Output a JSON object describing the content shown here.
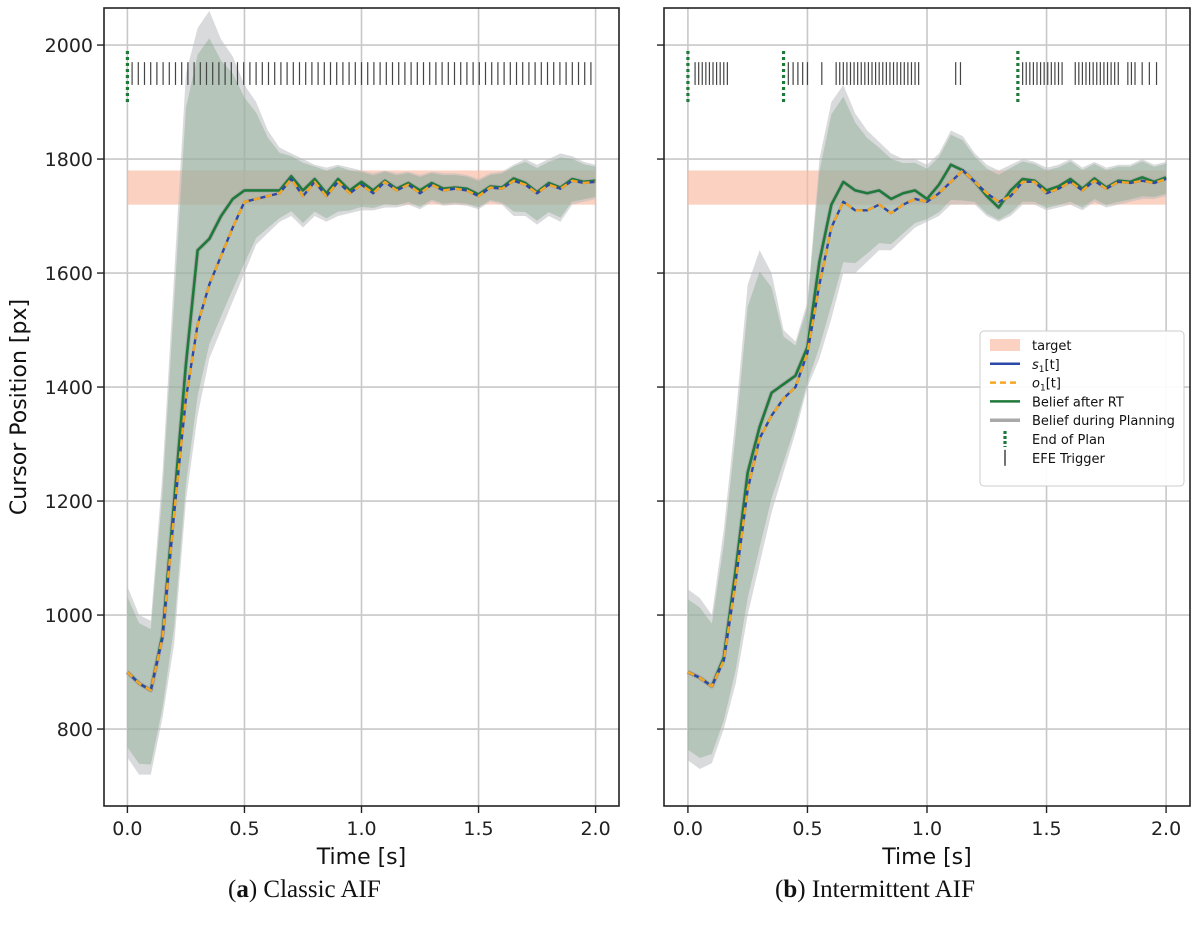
{
  "captions": {
    "a": {
      "letter": "a",
      "text": " Classic AIF"
    },
    "b": {
      "letter": "b",
      "text": " Intermittent AIF"
    }
  },
  "colors": {
    "target": "#f9b8a0",
    "s1": "#2b4aa8",
    "o1": "#f5a623",
    "belief_after_rt": "#1f7a3a",
    "belief_planning": "#a9a9a9",
    "end_of_plan": "#1f7a3a",
    "efe_trigger": "#444444",
    "band_gray": "#b9bcbf",
    "band_green": "#8aaa8f"
  },
  "legend": {
    "target": "target",
    "s1": "s",
    "s1_sub": "1",
    "s1_tail": "[t]",
    "o1": "o",
    "o1_sub": "1",
    "o1_tail": "[t]",
    "belief_after_rt": "Belief after RT",
    "belief_planning": "Belief during Planning",
    "end_of_plan": "End of Plan",
    "efe_trigger": "EFE Trigger"
  },
  "chart_data": [
    {
      "type": "line",
      "panel": "a",
      "title": "Classic AIF",
      "xlabel": "Time [s]",
      "ylabel": "Cursor Position [px]",
      "xlim": [
        -0.1,
        2.1
      ],
      "ylim": [
        665,
        2065
      ],
      "xticks": [
        0.0,
        0.5,
        1.0,
        1.5,
        2.0
      ],
      "xtick_labels": [
        "0.0",
        "0.5",
        "1.0",
        "1.5",
        "2.0"
      ],
      "yticks": [
        800,
        1000,
        1200,
        1400,
        1600,
        1800,
        2000
      ],
      "ytick_labels": [
        "800",
        "1000",
        "1200",
        "1400",
        "1600",
        "1800",
        "2000"
      ],
      "grid": true,
      "target_band": [
        1720,
        1780
      ],
      "x": [
        0.0,
        0.05,
        0.1,
        0.15,
        0.2,
        0.25,
        0.3,
        0.35,
        0.4,
        0.45,
        0.5,
        0.55,
        0.6,
        0.65,
        0.7,
        0.75,
        0.8,
        0.85,
        0.9,
        0.95,
        1.0,
        1.05,
        1.1,
        1.15,
        1.2,
        1.25,
        1.3,
        1.35,
        1.4,
        1.45,
        1.5,
        1.55,
        1.6,
        1.65,
        1.7,
        1.75,
        1.8,
        1.85,
        1.9,
        1.95,
        2.0
      ],
      "series": [
        {
          "name": "s1[t]",
          "values": [
            900,
            880,
            868,
            960,
            1180,
            1380,
            1510,
            1580,
            1630,
            1680,
            1725,
            1730,
            1735,
            1740,
            1765,
            1735,
            1760,
            1735,
            1760,
            1740,
            1755,
            1740,
            1760,
            1745,
            1755,
            1740,
            1755,
            1745,
            1748,
            1745,
            1735,
            1750,
            1748,
            1762,
            1755,
            1740,
            1755,
            1748,
            1762,
            1758,
            1760
          ]
        },
        {
          "name": "o1[t]",
          "values": [
            900,
            880,
            868,
            960,
            1180,
            1380,
            1510,
            1580,
            1630,
            1680,
            1725,
            1730,
            1735,
            1740,
            1765,
            1735,
            1760,
            1735,
            1760,
            1740,
            1755,
            1740,
            1760,
            1745,
            1755,
            1740,
            1755,
            1745,
            1748,
            1745,
            1735,
            1750,
            1748,
            1762,
            1755,
            1740,
            1755,
            1748,
            1762,
            1758,
            1760
          ]
        },
        {
          "name": "Belief after RT",
          "values": [
            900,
            880,
            868,
            965,
            1200,
            1440,
            1640,
            1660,
            1700,
            1730,
            1745,
            1745,
            1745,
            1745,
            1770,
            1745,
            1765,
            1740,
            1765,
            1745,
            1760,
            1745,
            1762,
            1748,
            1758,
            1745,
            1758,
            1748,
            1750,
            1748,
            1738,
            1752,
            1750,
            1766,
            1758,
            1742,
            1758,
            1750,
            1765,
            1760,
            1762
          ]
        },
        {
          "name": "Belief during Planning",
          "values": [
            900,
            880,
            868,
            965,
            1200,
            1440,
            1640,
            1660,
            1700,
            1730,
            1745,
            1745,
            1745,
            1745,
            1770,
            1745,
            1765,
            1740,
            1765,
            1745,
            1760,
            1745,
            1762,
            1748,
            1758,
            1745,
            1758,
            1748,
            1750,
            1748,
            1738,
            1752,
            1750,
            1766,
            1758,
            1742,
            1758,
            1750,
            1765,
            1760,
            1762
          ]
        }
      ],
      "band_upper": [
        1050,
        1000,
        990,
        1250,
        1600,
        1950,
        2030,
        2060,
        2010,
        1980,
        1930,
        1900,
        1850,
        1820,
        1810,
        1800,
        1790,
        1785,
        1790,
        1785,
        1780,
        1775,
        1780,
        1775,
        1778,
        1772,
        1778,
        1775,
        1775,
        1772,
        1765,
        1775,
        1778,
        1790,
        1800,
        1790,
        1800,
        1810,
        1805,
        1795,
        1790
      ],
      "band_lower": [
        750,
        720,
        720,
        820,
        950,
        1200,
        1350,
        1450,
        1500,
        1550,
        1600,
        1650,
        1670,
        1690,
        1700,
        1680,
        1700,
        1690,
        1700,
        1705,
        1710,
        1710,
        1715,
        1715,
        1720,
        1712,
        1725,
        1718,
        1720,
        1718,
        1712,
        1725,
        1720,
        1700,
        1700,
        1685,
        1700,
        1690,
        1720,
        1725,
        1730
      ],
      "end_of_plan": [
        0.0
      ],
      "efe_trigger_range": [
        0.02,
        1.98
      ],
      "efe_trigger_count": 75,
      "marker_y": [
        1930,
        1970
      ]
    },
    {
      "type": "line",
      "panel": "b",
      "title": "Intermittent AIF",
      "xlabel": "Time [s]",
      "ylabel": "",
      "xlim": [
        -0.1,
        2.1
      ],
      "ylim": [
        665,
        2065
      ],
      "xticks": [
        0.0,
        0.5,
        1.0,
        1.5,
        2.0
      ],
      "xtick_labels": [
        "0.0",
        "0.5",
        "1.0",
        "1.5",
        "2.0"
      ],
      "yticks": [
        800,
        1000,
        1200,
        1400,
        1600,
        1800,
        2000
      ],
      "ytick_labels": [
        "",
        "",
        "",
        "",
        "",
        "",
        ""
      ],
      "grid": true,
      "target_band": [
        1720,
        1780
      ],
      "x": [
        0.0,
        0.05,
        0.1,
        0.15,
        0.2,
        0.25,
        0.3,
        0.35,
        0.4,
        0.45,
        0.5,
        0.55,
        0.6,
        0.65,
        0.7,
        0.75,
        0.8,
        0.85,
        0.9,
        0.95,
        1.0,
        1.05,
        1.1,
        1.15,
        1.2,
        1.25,
        1.3,
        1.35,
        1.4,
        1.45,
        1.5,
        1.55,
        1.6,
        1.65,
        1.7,
        1.75,
        1.8,
        1.85,
        1.9,
        1.95,
        2.0
      ],
      "series": [
        {
          "name": "s1[t]",
          "values": [
            900,
            890,
            875,
            920,
            1060,
            1220,
            1310,
            1350,
            1380,
            1400,
            1460,
            1580,
            1680,
            1725,
            1710,
            1710,
            1720,
            1705,
            1720,
            1730,
            1725,
            1740,
            1760,
            1780,
            1760,
            1740,
            1725,
            1735,
            1760,
            1760,
            1740,
            1748,
            1760,
            1745,
            1762,
            1748,
            1760,
            1758,
            1762,
            1758,
            1765
          ]
        },
        {
          "name": "o1[t]",
          "values": [
            900,
            890,
            875,
            920,
            1060,
            1220,
            1310,
            1350,
            1380,
            1400,
            1460,
            1580,
            1680,
            1725,
            1710,
            1710,
            1720,
            1705,
            1720,
            1730,
            1725,
            1740,
            1760,
            1780,
            1760,
            1740,
            1725,
            1735,
            1760,
            1760,
            1740,
            1748,
            1760,
            1745,
            1762,
            1748,
            1760,
            1758,
            1762,
            1758,
            1765
          ]
        },
        {
          "name": "Belief after RT",
          "values": [
            900,
            890,
            875,
            925,
            1080,
            1250,
            1330,
            1390,
            1405,
            1420,
            1470,
            1620,
            1720,
            1760,
            1745,
            1740,
            1745,
            1730,
            1740,
            1745,
            1730,
            1755,
            1790,
            1780,
            1760,
            1735,
            1715,
            1745,
            1765,
            1762,
            1745,
            1752,
            1765,
            1748,
            1766,
            1750,
            1762,
            1760,
            1768,
            1760,
            1768
          ]
        },
        {
          "name": "Belief during Planning",
          "values": [
            900,
            890,
            875,
            925,
            1080,
            1250,
            1330,
            1390,
            1405,
            1420,
            1470,
            1620,
            1720,
            1760,
            1745,
            1740,
            1745,
            1730,
            1740,
            1745,
            1730,
            1755,
            1790,
            1780,
            1760,
            1735,
            1715,
            1745,
            1765,
            1762,
            1745,
            1752,
            1765,
            1748,
            1766,
            1750,
            1762,
            1760,
            1768,
            1760,
            1768
          ]
        }
      ],
      "band_upper": [
        1045,
        1030,
        1000,
        1150,
        1350,
        1580,
        1640,
        1600,
        1500,
        1480,
        1550,
        1800,
        1900,
        1930,
        1880,
        1850,
        1830,
        1810,
        1800,
        1800,
        1790,
        1810,
        1850,
        1840,
        1810,
        1790,
        1780,
        1790,
        1800,
        1795,
        1785,
        1790,
        1800,
        1785,
        1795,
        1785,
        1790,
        1790,
        1800,
        1790,
        1795
      ],
      "band_lower": [
        745,
        730,
        740,
        800,
        880,
        1000,
        1090,
        1180,
        1250,
        1320,
        1400,
        1450,
        1520,
        1600,
        1600,
        1620,
        1640,
        1640,
        1660,
        1680,
        1690,
        1700,
        1720,
        1720,
        1720,
        1700,
        1690,
        1700,
        1720,
        1720,
        1710,
        1715,
        1720,
        1710,
        1725,
        1715,
        1720,
        1725,
        1730,
        1730,
        1735
      ],
      "end_of_plan": [
        0.0,
        0.4,
        1.38
      ],
      "efe_triggers": [
        0.03,
        0.045,
        0.06,
        0.075,
        0.09,
        0.105,
        0.12,
        0.135,
        0.15,
        0.165,
        0.42,
        0.44,
        0.46,
        0.48,
        0.5,
        0.56,
        0.62,
        0.635,
        0.65,
        0.665,
        0.68,
        0.695,
        0.71,
        0.725,
        0.74,
        0.755,
        0.77,
        0.785,
        0.8,
        0.815,
        0.83,
        0.845,
        0.86,
        0.875,
        0.89,
        0.905,
        0.92,
        0.935,
        0.95,
        0.965,
        1.12,
        1.14,
        1.4,
        1.415,
        1.43,
        1.445,
        1.46,
        1.475,
        1.49,
        1.505,
        1.52,
        1.535,
        1.55,
        1.565,
        1.62,
        1.635,
        1.65,
        1.665,
        1.68,
        1.695,
        1.71,
        1.725,
        1.74,
        1.755,
        1.77,
        1.785,
        1.8,
        1.84,
        1.855,
        1.87,
        1.9,
        1.93,
        1.96
      ],
      "marker_y": [
        1930,
        1970
      ]
    }
  ]
}
